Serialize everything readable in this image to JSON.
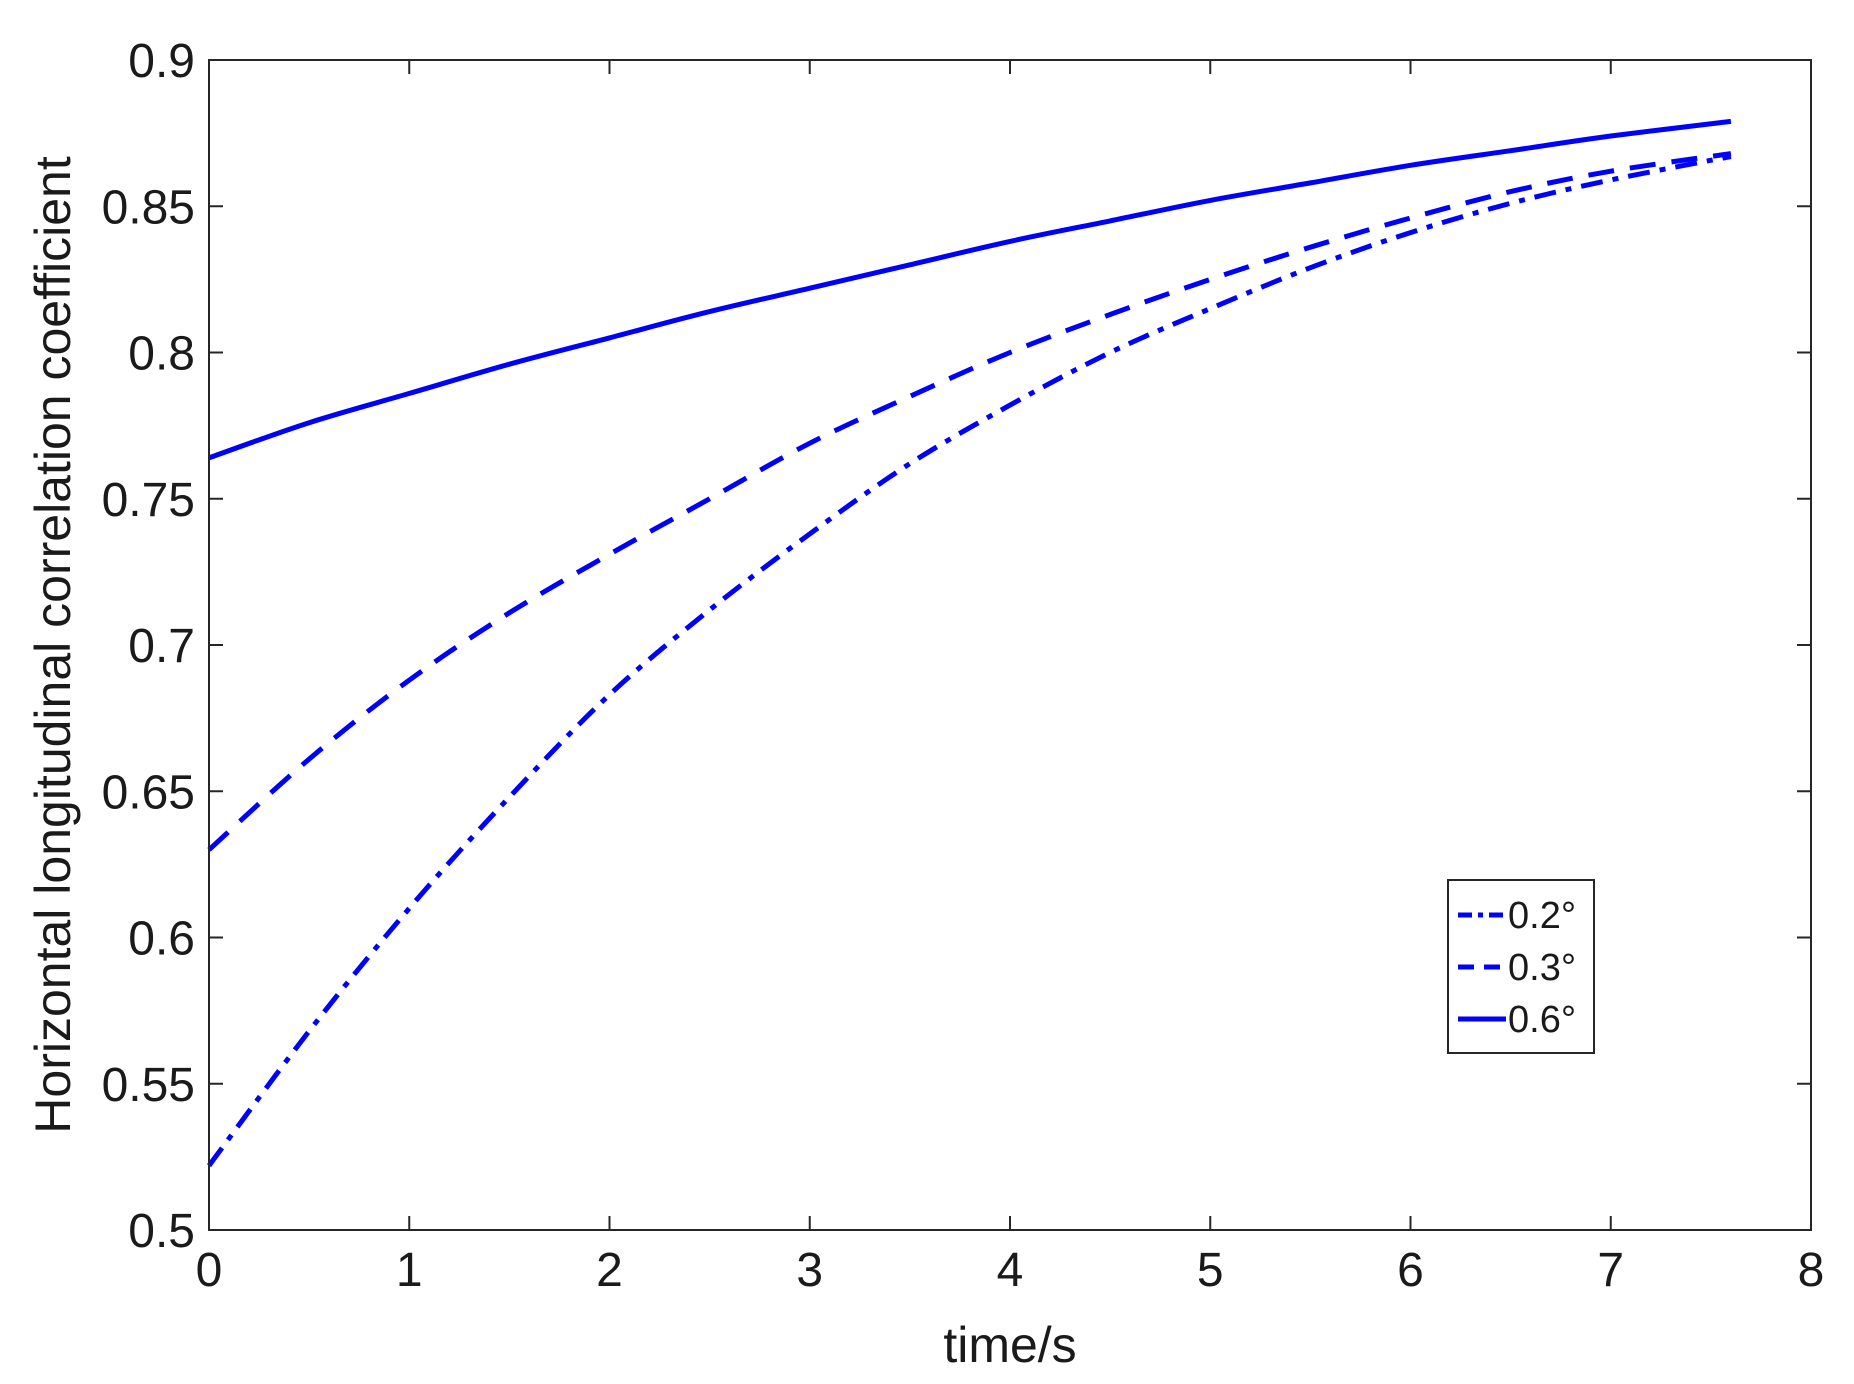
{
  "chart_data": {
    "type": "line",
    "title": "",
    "xlabel": "time/s",
    "ylabel": "Horizontal longitudinal correlation coefficient",
    "xlim": [
      0,
      8
    ],
    "ylim": [
      0.5,
      0.9
    ],
    "x_ticks": [
      0,
      1,
      2,
      3,
      4,
      5,
      6,
      7,
      8
    ],
    "x_tick_labels": [
      "0",
      "1",
      "2",
      "3",
      "4",
      "5",
      "6",
      "7",
      "8"
    ],
    "y_ticks": [
      0.5,
      0.55,
      0.6,
      0.65,
      0.7,
      0.75,
      0.8,
      0.85,
      0.9
    ],
    "y_tick_labels": [
      "0.5",
      "0.55",
      "0.6",
      "0.65",
      "0.7",
      "0.75",
      "0.8",
      "0.85",
      "0.9"
    ],
    "grid": false,
    "legend_position": "bottom-right",
    "series": [
      {
        "name": "0.2°",
        "style": "dashdot",
        "color": "#0000ff",
        "x": [
          0,
          0.5,
          1,
          1.5,
          2,
          2.5,
          3,
          3.5,
          4,
          4.5,
          5,
          5.5,
          6,
          6.5,
          7,
          7.6
        ],
        "y": [
          0.522,
          0.568,
          0.61,
          0.648,
          0.683,
          0.712,
          0.738,
          0.762,
          0.782,
          0.8,
          0.815,
          0.829,
          0.841,
          0.851,
          0.859,
          0.867
        ]
      },
      {
        "name": "0.3°",
        "style": "dashed",
        "color": "#0000ff",
        "x": [
          0,
          0.5,
          1,
          1.5,
          2,
          2.5,
          3,
          3.5,
          4,
          4.5,
          5,
          5.5,
          6,
          6.5,
          7,
          7.6
        ],
        "y": [
          0.63,
          0.661,
          0.688,
          0.711,
          0.731,
          0.75,
          0.769,
          0.785,
          0.8,
          0.813,
          0.825,
          0.836,
          0.846,
          0.855,
          0.862,
          0.868
        ]
      },
      {
        "name": "0.6°",
        "style": "solid",
        "color": "#0000ff",
        "x": [
          0,
          0.5,
          1,
          1.5,
          2,
          2.5,
          3,
          3.5,
          4,
          4.5,
          5,
          5.5,
          6,
          6.5,
          7,
          7.6
        ],
        "y": [
          0.764,
          0.776,
          0.786,
          0.796,
          0.805,
          0.814,
          0.822,
          0.83,
          0.838,
          0.845,
          0.852,
          0.858,
          0.864,
          0.869,
          0.874,
          0.879
        ]
      }
    ]
  }
}
